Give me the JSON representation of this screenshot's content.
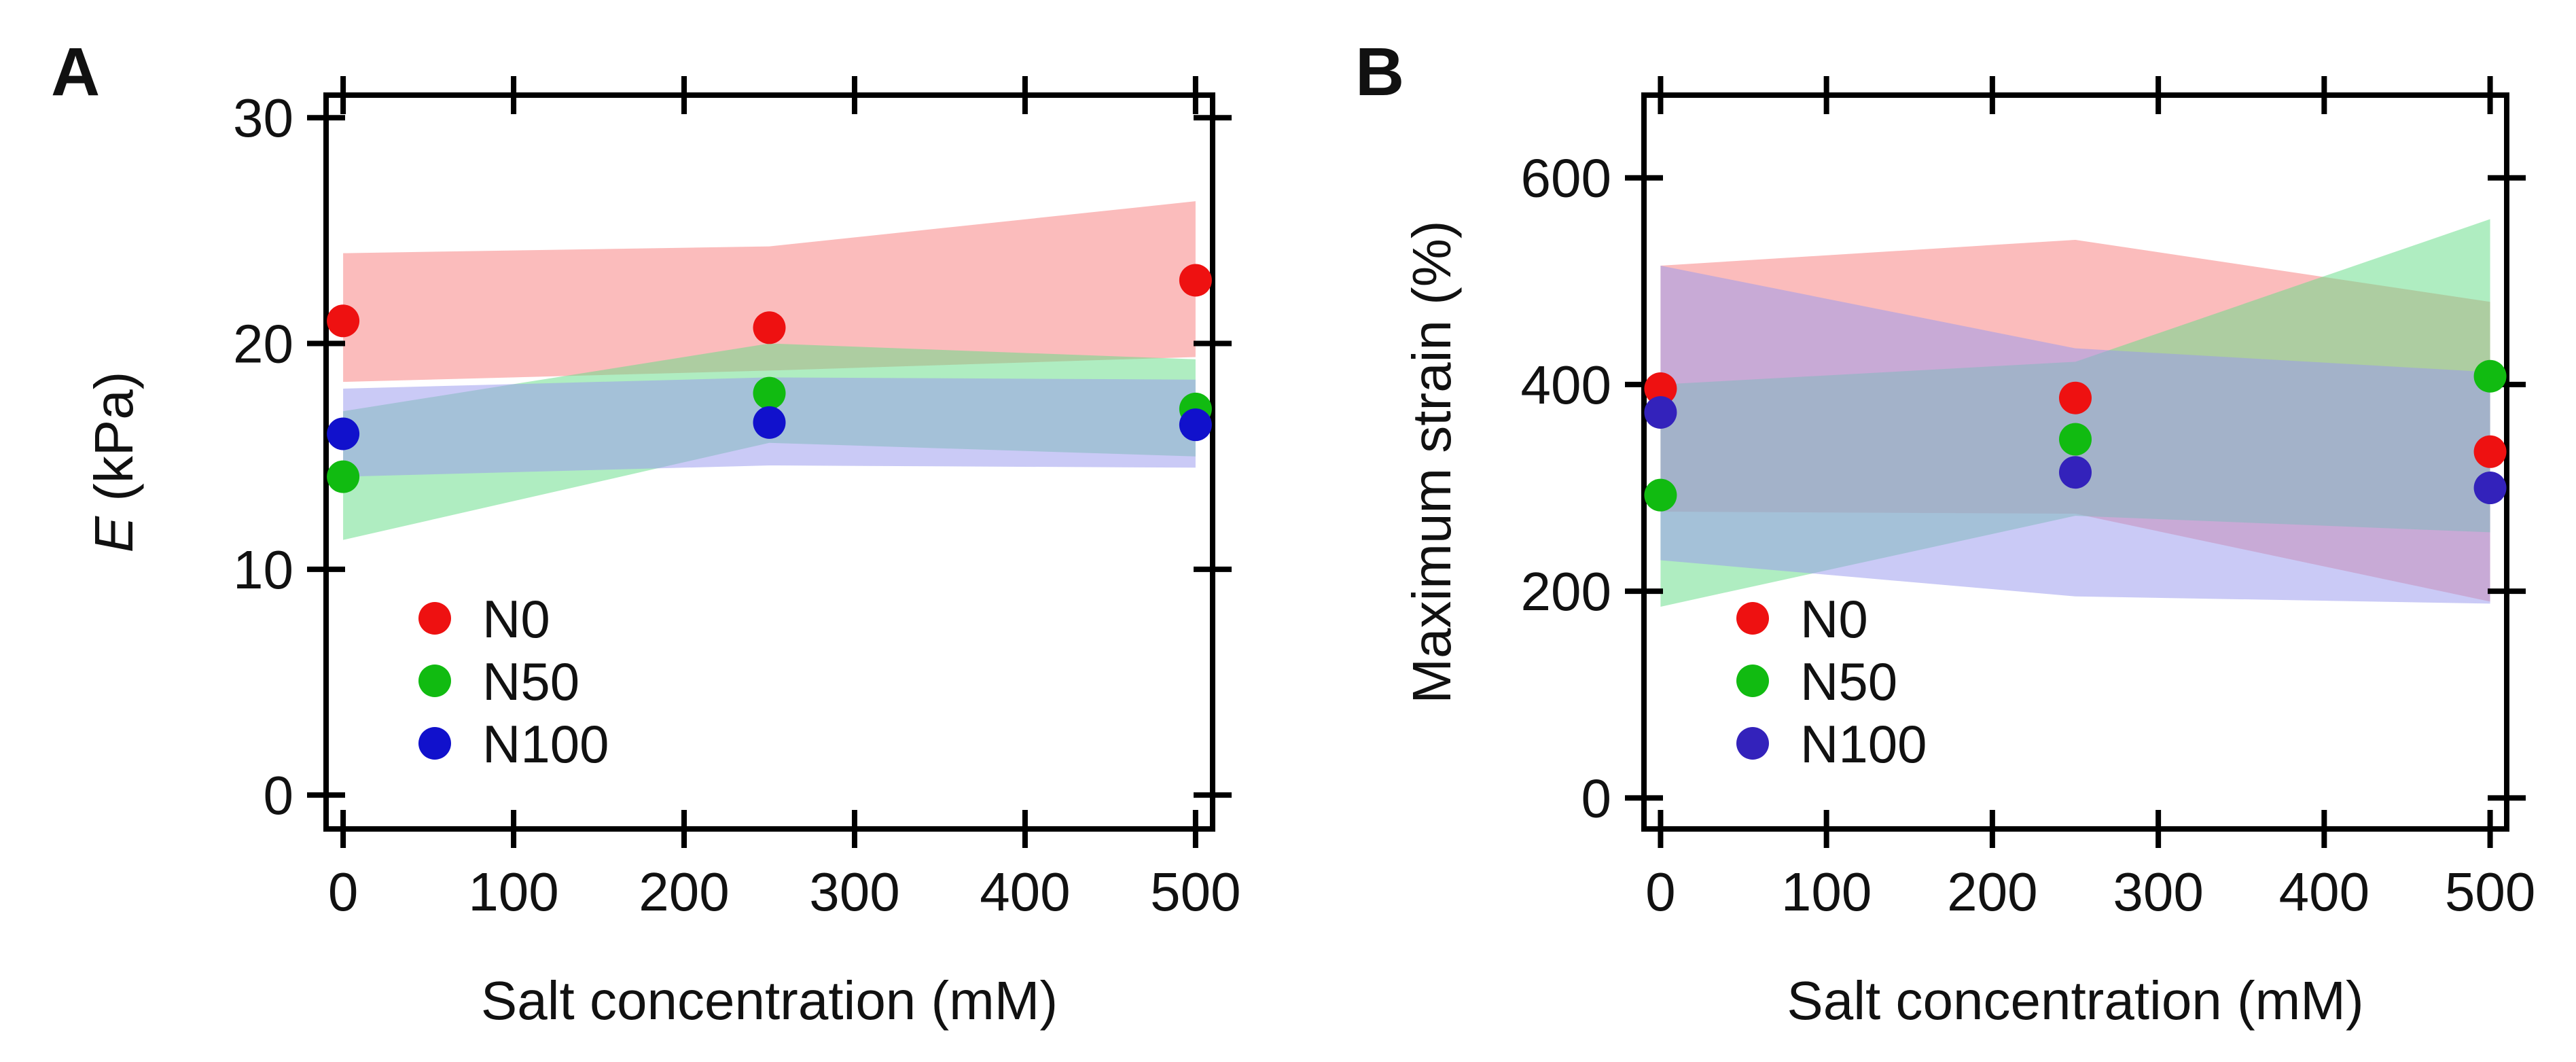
{
  "panels": [
    {
      "label": "A",
      "chart_data": {
        "type": "scatter",
        "title": "",
        "xlabel": "Salt concentration (mM)",
        "ylabel_italic": "E",
        "ylabel_rest": " (kPa)",
        "xlim": [
          -10,
          510
        ],
        "ylim": [
          -1.5,
          31
        ],
        "xticks": [
          0,
          100,
          200,
          300,
          400,
          500
        ],
        "yticks": [
          0,
          10,
          20,
          30
        ],
        "x": [
          0,
          250,
          500
        ],
        "series": [
          {
            "name": "N0",
            "color": "#ee1111",
            "band_color": "#f77f7f",
            "values": [
              21.0,
              20.7,
              22.8
            ],
            "band_low": [
              18.3,
              18.8,
              19.4
            ],
            "band_high": [
              24.0,
              24.3,
              26.3
            ]
          },
          {
            "name": "N50",
            "color": "#11bb11",
            "band_color": "#66dd88",
            "values": [
              14.1,
              17.8,
              17.1
            ],
            "band_low": [
              11.3,
              15.6,
              15.0
            ],
            "band_high": [
              17.0,
              20.0,
              19.3
            ]
          },
          {
            "name": "N100",
            "color": "#1111cc",
            "band_color": "#9999ee",
            "values": [
              16.0,
              16.5,
              16.4
            ],
            "band_low": [
              14.1,
              14.6,
              14.5
            ],
            "band_high": [
              18.0,
              18.5,
              18.4
            ]
          }
        ],
        "legend": "lower-left"
      }
    },
    {
      "label": "B",
      "chart_data": {
        "type": "scatter",
        "title": "",
        "xlabel": "Salt concentration (mM)",
        "ylabel_italic": "",
        "ylabel_rest": "Maximum strain (%)",
        "xlim": [
          -10,
          510
        ],
        "ylim": [
          -30,
          680
        ],
        "xticks": [
          0,
          100,
          200,
          300,
          400,
          500
        ],
        "yticks": [
          0,
          200,
          400,
          600
        ],
        "x": [
          0,
          250,
          500
        ],
        "series": [
          {
            "name": "N0",
            "color": "#ee1111",
            "band_color": "#f77f7f",
            "values": [
              396,
              387,
              335
            ],
            "band_low": [
              277,
              275,
              190
            ],
            "band_high": [
              515,
              540,
              480
            ]
          },
          {
            "name": "N50",
            "color": "#11bb11",
            "band_color": "#66dd88",
            "values": [
              293,
              347,
              408
            ],
            "band_low": [
              185,
              273,
              257
            ],
            "band_high": [
              400,
              422,
              560
            ]
          },
          {
            "name": "N100",
            "color": "#3322bb",
            "band_color": "#9999ee",
            "values": [
              373,
              315,
              300
            ],
            "band_low": [
              230,
              195,
              188
            ],
            "band_high": [
              515,
              435,
              412
            ]
          }
        ],
        "legend": "lower-left"
      }
    }
  ]
}
